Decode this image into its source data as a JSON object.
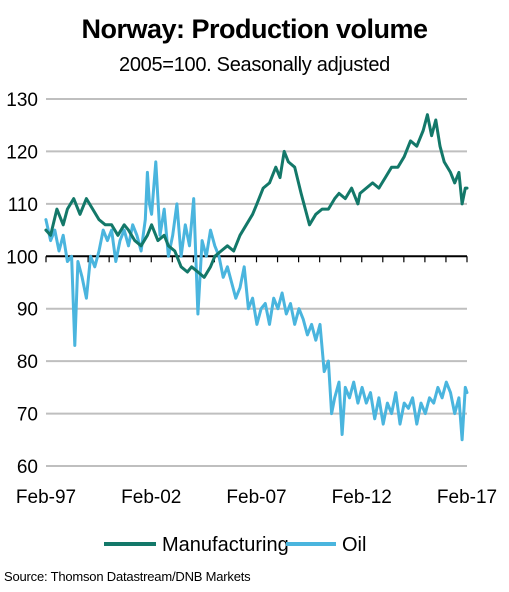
{
  "chart_data": {
    "type": "line",
    "title": "Norway: Production volume",
    "subtitle": "2005=100. Seasonally adjusted",
    "xlabel": "",
    "ylabel": "",
    "ylim": [
      60,
      130
    ],
    "yticks": [
      60,
      70,
      80,
      90,
      100,
      110,
      120,
      130
    ],
    "xlim": [
      1997.083,
      2017.083
    ],
    "xticks": [
      {
        "value": 1997.083,
        "label": "Feb-97"
      },
      {
        "value": 2002.083,
        "label": "Feb-02"
      },
      {
        "value": 2007.083,
        "label": "Feb-07"
      },
      {
        "value": 2012.083,
        "label": "Feb-12"
      },
      {
        "value": 2017.083,
        "label": "Feb-17"
      }
    ],
    "grid": true,
    "legend": "bottom",
    "source": "Source:  Thomson Datastream/DNB  Markets",
    "series": [
      {
        "name": "Manufacturing",
        "color": "#137869",
        "points": [
          [
            1997.08,
            105
          ],
          [
            1997.3,
            104
          ],
          [
            1997.6,
            109
          ],
          [
            1997.9,
            106
          ],
          [
            1998.1,
            109
          ],
          [
            1998.4,
            111
          ],
          [
            1998.7,
            108
          ],
          [
            1999.0,
            111
          ],
          [
            1999.3,
            109
          ],
          [
            1999.6,
            107
          ],
          [
            1999.9,
            106
          ],
          [
            2000.2,
            106
          ],
          [
            2000.5,
            104
          ],
          [
            2000.8,
            106
          ],
          [
            2001.0,
            105
          ],
          [
            2001.3,
            103
          ],
          [
            2001.6,
            102
          ],
          [
            2001.9,
            104
          ],
          [
            2002.1,
            106
          ],
          [
            2002.4,
            103
          ],
          [
            2002.7,
            104
          ],
          [
            2002.9,
            102
          ],
          [
            2003.2,
            101
          ],
          [
            2003.5,
            98
          ],
          [
            2003.8,
            97
          ],
          [
            2004.0,
            98
          ],
          [
            2004.3,
            97
          ],
          [
            2004.6,
            96
          ],
          [
            2004.9,
            98
          ],
          [
            2005.1,
            100
          ],
          [
            2005.4,
            101
          ],
          [
            2005.7,
            102
          ],
          [
            2006.0,
            101
          ],
          [
            2006.3,
            104
          ],
          [
            2006.6,
            106
          ],
          [
            2006.9,
            108
          ],
          [
            2007.1,
            110
          ],
          [
            2007.4,
            113
          ],
          [
            2007.7,
            114
          ],
          [
            2008.0,
            117
          ],
          [
            2008.2,
            115
          ],
          [
            2008.4,
            120
          ],
          [
            2008.6,
            118
          ],
          [
            2008.9,
            117
          ],
          [
            2009.2,
            112
          ],
          [
            2009.4,
            109
          ],
          [
            2009.6,
            106
          ],
          [
            2009.9,
            108
          ],
          [
            2010.2,
            109
          ],
          [
            2010.5,
            109
          ],
          [
            2010.8,
            111
          ],
          [
            2011.0,
            112
          ],
          [
            2011.3,
            111
          ],
          [
            2011.6,
            113
          ],
          [
            2011.9,
            110
          ],
          [
            2012.0,
            112
          ],
          [
            2012.3,
            113
          ],
          [
            2012.6,
            114
          ],
          [
            2012.9,
            113
          ],
          [
            2013.2,
            115
          ],
          [
            2013.5,
            117
          ],
          [
            2013.8,
            117
          ],
          [
            2014.1,
            119
          ],
          [
            2014.4,
            122
          ],
          [
            2014.7,
            121
          ],
          [
            2015.0,
            124
          ],
          [
            2015.2,
            127
          ],
          [
            2015.4,
            123
          ],
          [
            2015.6,
            126
          ],
          [
            2015.8,
            121
          ],
          [
            2016.0,
            118
          ],
          [
            2016.3,
            116
          ],
          [
            2016.5,
            114
          ],
          [
            2016.7,
            116
          ],
          [
            2016.85,
            110
          ],
          [
            2017.0,
            113
          ],
          [
            2017.083,
            113
          ]
        ]
      },
      {
        "name": "Oil",
        "color": "#4ab5de",
        "points": [
          [
            1997.08,
            107
          ],
          [
            1997.3,
            103
          ],
          [
            1997.5,
            105
          ],
          [
            1997.7,
            101
          ],
          [
            1997.9,
            104
          ],
          [
            1998.1,
            99
          ],
          [
            1998.3,
            100
          ],
          [
            1998.45,
            83
          ],
          [
            1998.6,
            99
          ],
          [
            1998.8,
            96
          ],
          [
            1999.0,
            92
          ],
          [
            1999.2,
            100
          ],
          [
            1999.4,
            98
          ],
          [
            1999.6,
            101
          ],
          [
            1999.8,
            105
          ],
          [
            2000.0,
            103
          ],
          [
            2000.2,
            105
          ],
          [
            2000.4,
            99
          ],
          [
            2000.6,
            103
          ],
          [
            2000.8,
            105
          ],
          [
            2001.0,
            102
          ],
          [
            2001.2,
            106
          ],
          [
            2001.4,
            104
          ],
          [
            2001.6,
            101
          ],
          [
            2001.8,
            107
          ],
          [
            2001.9,
            116
          ],
          [
            2002.0,
            110
          ],
          [
            2002.1,
            108
          ],
          [
            2002.3,
            118
          ],
          [
            2002.5,
            104
          ],
          [
            2002.7,
            109
          ],
          [
            2002.9,
            100
          ],
          [
            2003.1,
            104
          ],
          [
            2003.3,
            110
          ],
          [
            2003.5,
            100
          ],
          [
            2003.7,
            106
          ],
          [
            2003.9,
            102
          ],
          [
            2004.1,
            111
          ],
          [
            2004.3,
            89
          ],
          [
            2004.5,
            103
          ],
          [
            2004.7,
            100
          ],
          [
            2004.9,
            105
          ],
          [
            2005.1,
            102
          ],
          [
            2005.3,
            100
          ],
          [
            2005.5,
            96
          ],
          [
            2005.7,
            98
          ],
          [
            2005.9,
            95
          ],
          [
            2006.1,
            92
          ],
          [
            2006.3,
            94
          ],
          [
            2006.5,
            98
          ],
          [
            2006.7,
            90
          ],
          [
            2006.9,
            92
          ],
          [
            2007.1,
            87
          ],
          [
            2007.3,
            90
          ],
          [
            2007.5,
            91
          ],
          [
            2007.7,
            87
          ],
          [
            2007.9,
            92
          ],
          [
            2008.1,
            90
          ],
          [
            2008.3,
            93
          ],
          [
            2008.5,
            89
          ],
          [
            2008.7,
            91
          ],
          [
            2008.9,
            87
          ],
          [
            2009.1,
            90
          ],
          [
            2009.3,
            88
          ],
          [
            2009.5,
            85
          ],
          [
            2009.7,
            87
          ],
          [
            2009.9,
            84
          ],
          [
            2010.1,
            87
          ],
          [
            2010.3,
            78
          ],
          [
            2010.5,
            80
          ],
          [
            2010.65,
            70
          ],
          [
            2010.8,
            73
          ],
          [
            2011.0,
            76
          ],
          [
            2011.15,
            66
          ],
          [
            2011.3,
            75
          ],
          [
            2011.5,
            73
          ],
          [
            2011.7,
            76
          ],
          [
            2011.9,
            72
          ],
          [
            2012.1,
            75
          ],
          [
            2012.3,
            72
          ],
          [
            2012.5,
            74
          ],
          [
            2012.7,
            69
          ],
          [
            2012.9,
            73
          ],
          [
            2013.1,
            68
          ],
          [
            2013.3,
            72
          ],
          [
            2013.5,
            70
          ],
          [
            2013.7,
            74
          ],
          [
            2013.9,
            68
          ],
          [
            2014.1,
            72
          ],
          [
            2014.3,
            71
          ],
          [
            2014.5,
            73
          ],
          [
            2014.7,
            68
          ],
          [
            2014.9,
            72
          ],
          [
            2015.1,
            70
          ],
          [
            2015.3,
            73
          ],
          [
            2015.5,
            72
          ],
          [
            2015.7,
            75
          ],
          [
            2015.9,
            73
          ],
          [
            2016.1,
            76
          ],
          [
            2016.3,
            74
          ],
          [
            2016.5,
            70
          ],
          [
            2016.7,
            73
          ],
          [
            2016.85,
            65
          ],
          [
            2017.0,
            75
          ],
          [
            2017.083,
            74
          ]
        ]
      }
    ]
  }
}
